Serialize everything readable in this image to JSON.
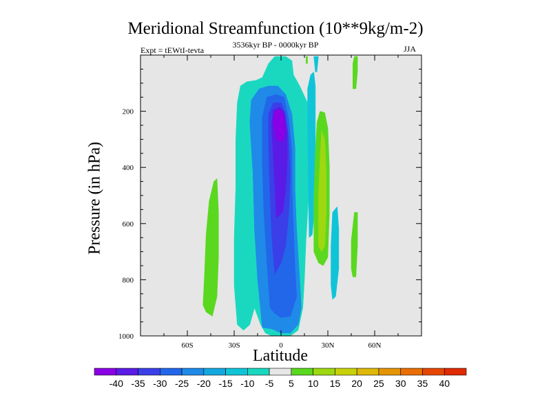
{
  "title": "Meridional Streamfunction (10**9kg/m-2)",
  "subtitle": "3536kyr BP - 0000kyr BP",
  "left_label": "Expt = tEWtI-tevta",
  "right_label": "JJA",
  "colors": {
    "background_plot": "#e6e6e6",
    "missing_band": "#f2f2f2"
  },
  "chart_data": {
    "type": "heatmap",
    "title": "Meridional Streamfunction (10**9kg/m-2)",
    "xlabel": "Latitude",
    "ylabel": "Pressure (in hPa)",
    "xlim": [
      -90,
      90
    ],
    "ylim": [
      1000,
      0
    ],
    "x_ticks": [
      {
        "value": -60,
        "label": "60S"
      },
      {
        "value": -30,
        "label": "30S"
      },
      {
        "value": 0,
        "label": "0"
      },
      {
        "value": 30,
        "label": "30N"
      },
      {
        "value": 60,
        "label": "60N"
      }
    ],
    "y_ticks": [
      {
        "value": 200,
        "label": "200"
      },
      {
        "value": 400,
        "label": "400"
      },
      {
        "value": 600,
        "label": "600"
      },
      {
        "value": 800,
        "label": "800"
      },
      {
        "value": 1000,
        "label": "1000"
      }
    ],
    "colorbar": {
      "labels": [
        "-40",
        "-35",
        "-30",
        "-25",
        "-20",
        "-15",
        "-10",
        "-5",
        "5",
        "10",
        "15",
        "20",
        "25",
        "30",
        "35",
        "40"
      ],
      "colors": [
        "#8a00e6",
        "#5a1be6",
        "#3b3fe8",
        "#2266ea",
        "#1f8ae8",
        "#12a8e0",
        "#10c4d8",
        "#1ad8c0",
        "#e6e6e6",
        "#5ad81f",
        "#9ed810",
        "#c8d20a",
        "#ddb808",
        "#e59406",
        "#e86e05",
        "#e64604",
        "#e02a02"
      ]
    },
    "regions": [
      {
        "name": "green-band-south",
        "level": "5 to 10",
        "points": [
          [
            -50,
            890
          ],
          [
            -49,
            780
          ],
          [
            -48,
            640
          ],
          [
            -46,
            520
          ],
          [
            -43,
            450
          ],
          [
            -41,
            440
          ],
          [
            -40,
            560
          ],
          [
            -40,
            720
          ],
          [
            -41,
            860
          ],
          [
            -44,
            930
          ],
          [
            -48,
            915
          ]
        ]
      },
      {
        "name": "cyan-band-main",
        "level": "-5 to -10",
        "points": [
          [
            -28,
            960
          ],
          [
            -30,
            820
          ],
          [
            -30,
            650
          ],
          [
            -29,
            470
          ],
          [
            -29,
            300
          ],
          [
            -28,
            170
          ],
          [
            -26,
            110
          ],
          [
            -22,
            95
          ],
          [
            -16,
            90
          ],
          [
            -12,
            80
          ],
          [
            -8,
            30
          ],
          [
            -4,
            5
          ],
          [
            3,
            5
          ],
          [
            7,
            20
          ],
          [
            8,
            70
          ],
          [
            12,
            110
          ],
          [
            17,
            170
          ],
          [
            18,
            300
          ],
          [
            18,
            480
          ],
          [
            16,
            660
          ],
          [
            15,
            800
          ],
          [
            14,
            900
          ],
          [
            11,
            980
          ],
          [
            6,
            1000
          ],
          [
            0,
            998
          ],
          [
            -6,
            1000
          ],
          [
            -10,
            990
          ],
          [
            -13,
            960
          ],
          [
            -17,
            900
          ],
          [
            -20,
            960
          ],
          [
            -24,
            980
          ]
        ]
      },
      {
        "name": "cyan-band-north-strip",
        "level": "-5",
        "points": [
          [
            17,
            250
          ],
          [
            17,
            120
          ],
          [
            19,
            70
          ],
          [
            21,
            60
          ],
          [
            22,
            110
          ],
          [
            22,
            300
          ],
          [
            22,
            520
          ],
          [
            20,
            640
          ],
          [
            18,
            650
          ]
        ]
      },
      {
        "name": "cyan-band-top-spike",
        "level": "-5",
        "points": [
          [
            21,
            5
          ],
          [
            22,
            60
          ],
          [
            23,
            60
          ],
          [
            24,
            5
          ]
        ]
      },
      {
        "name": "cyan-band-far-north",
        "level": "-5",
        "points": [
          [
            32,
            820
          ],
          [
            32,
            680
          ],
          [
            33,
            560
          ],
          [
            36,
            540
          ],
          [
            37,
            620
          ],
          [
            37,
            760
          ],
          [
            35,
            860
          ],
          [
            33,
            870
          ]
        ]
      },
      {
        "name": "cyan-scatter",
        "level": "-5",
        "points": [
          [
            -16,
            640
          ],
          [
            -16,
            600
          ],
          [
            -14,
            590
          ],
          [
            -13,
            650
          ]
        ]
      },
      {
        "name": "mid-blue",
        "level": "-10 to -20",
        "points": [
          [
            -12,
            970
          ],
          [
            -15,
            800
          ],
          [
            -17,
            620
          ],
          [
            -18,
            420
          ],
          [
            -20,
            240
          ],
          [
            -19,
            160
          ],
          [
            -14,
            120
          ],
          [
            -8,
            110
          ],
          [
            -2,
            110
          ],
          [
            3,
            140
          ],
          [
            7,
            210
          ],
          [
            9,
            330
          ],
          [
            9,
            480
          ],
          [
            10,
            620
          ],
          [
            12,
            800
          ],
          [
            13,
            900
          ],
          [
            11,
            960
          ],
          [
            6,
            990
          ],
          [
            0,
            990
          ],
          [
            -6,
            975
          ]
        ]
      },
      {
        "name": "blue",
        "level": "-20 to -25",
        "points": [
          [
            -7,
            900
          ],
          [
            -9,
            740
          ],
          [
            -11,
            560
          ],
          [
            -12,
            380
          ],
          [
            -12,
            220
          ],
          [
            -9,
            150
          ],
          [
            -3,
            140
          ],
          [
            2,
            150
          ],
          [
            5,
            230
          ],
          [
            7,
            340
          ],
          [
            7,
            470
          ],
          [
            8,
            620
          ],
          [
            9,
            760
          ],
          [
            10,
            860
          ],
          [
            6,
            930
          ],
          [
            0,
            935
          ],
          [
            -4,
            920
          ]
        ]
      },
      {
        "name": "deep-blue",
        "level": "-25 to -30",
        "points": [
          [
            -4,
            780
          ],
          [
            -6,
            640
          ],
          [
            -7,
            500
          ],
          [
            -8,
            330
          ],
          [
            -8,
            210
          ],
          [
            -5,
            170
          ],
          [
            0,
            170
          ],
          [
            3,
            210
          ],
          [
            5,
            300
          ],
          [
            6,
            420
          ],
          [
            5,
            560
          ],
          [
            3,
            680
          ],
          [
            0,
            740
          ]
        ]
      },
      {
        "name": "indigo",
        "level": "-30 to -35",
        "points": [
          [
            -3,
            580
          ],
          [
            -4,
            460
          ],
          [
            -5,
            360
          ],
          [
            -6,
            250
          ],
          [
            -5,
            195
          ],
          [
            -1,
            185
          ],
          [
            2,
            200
          ],
          [
            4,
            270
          ],
          [
            4,
            380
          ],
          [
            3,
            480
          ],
          [
            1,
            560
          ]
        ]
      },
      {
        "name": "violet",
        "level": "-35 to -40",
        "points": [
          [
            -3,
            300
          ],
          [
            -5,
            240
          ],
          [
            -4,
            200
          ],
          [
            0,
            195
          ],
          [
            2,
            215
          ],
          [
            3,
            270
          ],
          [
            1,
            310
          ]
        ]
      },
      {
        "name": "green-north",
        "level": "5 to 10",
        "points": [
          [
            21,
            700
          ],
          [
            21,
            520
          ],
          [
            22,
            340
          ],
          [
            23,
            240
          ],
          [
            25,
            200
          ],
          [
            28,
            205
          ],
          [
            30,
            260
          ],
          [
            31,
            400
          ],
          [
            31,
            560
          ],
          [
            30,
            720
          ],
          [
            27,
            750
          ],
          [
            24,
            740
          ]
        ]
      },
      {
        "name": "lime-north",
        "level": "10 to 15",
        "points": [
          [
            24,
            680
          ],
          [
            24,
            500
          ],
          [
            25,
            370
          ],
          [
            26,
            270
          ],
          [
            28,
            300
          ],
          [
            29,
            420
          ],
          [
            29,
            560
          ],
          [
            28,
            680
          ],
          [
            26,
            700
          ]
        ]
      },
      {
        "name": "green-top-north",
        "level": "5",
        "points": [
          [
            46,
            120
          ],
          [
            46,
            30
          ],
          [
            47,
            5
          ],
          [
            49,
            5
          ],
          [
            49,
            60
          ],
          [
            48,
            120
          ]
        ]
      },
      {
        "name": "green-north-lower",
        "level": "5",
        "points": [
          [
            45,
            760
          ],
          [
            45,
            660
          ],
          [
            47,
            560
          ],
          [
            49,
            560
          ],
          [
            49,
            680
          ],
          [
            48,
            790
          ],
          [
            46,
            790
          ]
        ]
      },
      {
        "name": "green-top-center",
        "level": "5",
        "points": [
          [
            16,
            30
          ],
          [
            16,
            5
          ],
          [
            17,
            5
          ],
          [
            17,
            30
          ]
        ]
      }
    ]
  }
}
